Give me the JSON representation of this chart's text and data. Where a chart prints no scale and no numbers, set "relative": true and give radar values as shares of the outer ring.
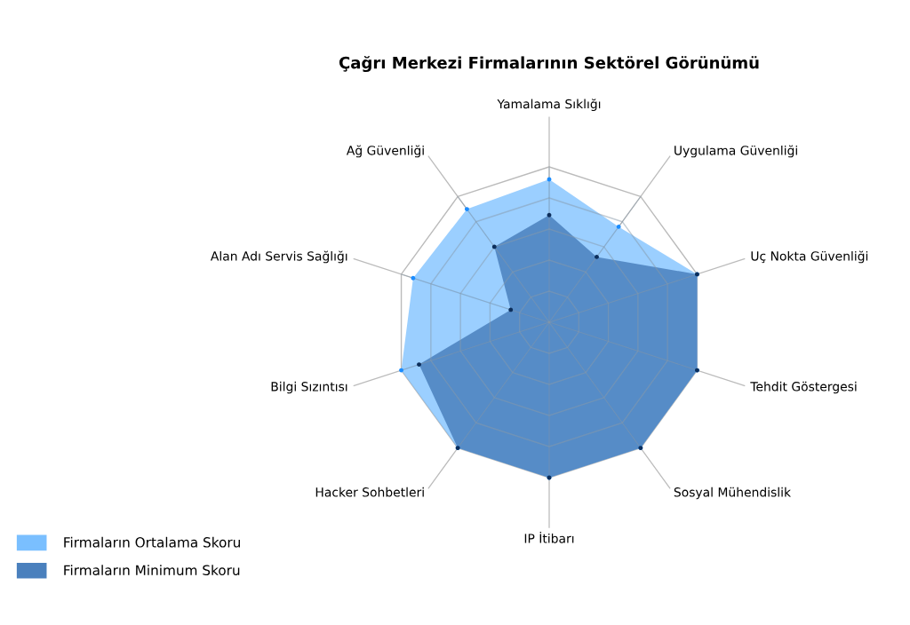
{
  "chart_data": {
    "type": "radar",
    "title": "Çağrı Merkezi Firmalarının Sektörel Görünümü",
    "relative": true,
    "categories": [
      "Yamalama Sıklığı",
      "Uygulama Güvenliği",
      "Uç Nokta Güvenliği",
      "Tehdit Göstergesi",
      "Sosyal Mühendislik",
      "IP İtibarı",
      "Hacker Sohbetleri",
      "Bilgi Sızıntısı",
      "Alan Adı Servis Sağlığı",
      "Ağ Güvenliği"
    ],
    "series": [
      {
        "name": "Firmaların Ortalama Skoru",
        "color": "#7abfff",
        "values": [
          0.92,
          0.76,
          1.0,
          1.0,
          1.0,
          1.0,
          1.0,
          1.0,
          0.92,
          0.9
        ]
      },
      {
        "name": "Firmaların Minimum Skoru",
        "color": "#4a80bd",
        "values": [
          0.69,
          0.52,
          1.0,
          1.0,
          1.0,
          1.0,
          1.0,
          0.88,
          0.26,
          0.6
        ]
      }
    ],
    "legend": "bottom left",
    "marker": "circle",
    "grid": true
  }
}
